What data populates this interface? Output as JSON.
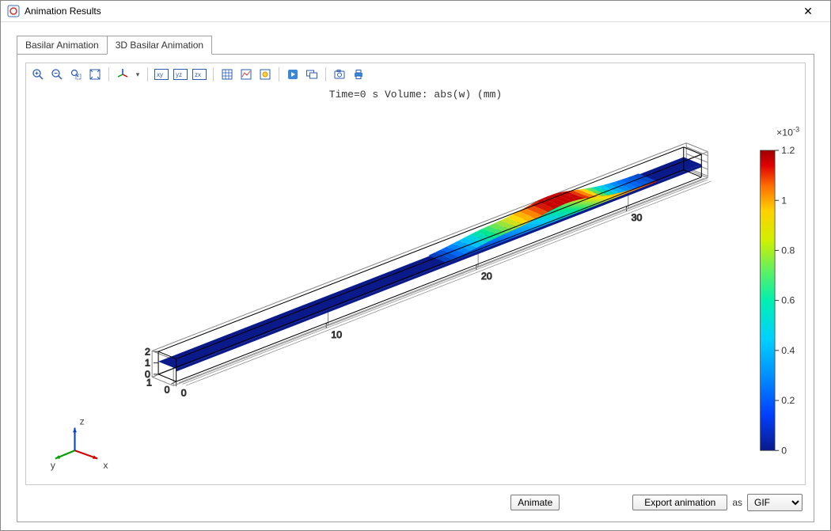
{
  "window": {
    "title": "Animation Results"
  },
  "tabs": [
    {
      "label": "Basilar Animation",
      "active": false
    },
    {
      "label": "3D Basilar Animation",
      "active": true
    }
  ],
  "toolbar_icons": [
    "zoom-in-icon",
    "zoom-out-icon",
    "zoom-box-icon",
    "zoom-extents-icon",
    "sep",
    "axis-3d-icon",
    "dd",
    "sep",
    "view-xy-icon",
    "view-yz-icon",
    "view-zx-icon",
    "sep",
    "grid-icon",
    "plot-settings-icon",
    "scene-light-icon",
    "sep",
    "play-icon",
    "loop-icon",
    "sep",
    "snapshot-icon",
    "print-icon"
  ],
  "plot": {
    "title": "Time=0 s   Volume: abs(w) (mm)",
    "x_ticks": [
      0,
      10,
      20,
      30
    ],
    "y_ticks": [
      0,
      1
    ],
    "z_ticks": [
      0,
      1,
      2
    ],
    "axis_triad": [
      "x",
      "y",
      "z"
    ],
    "triad_colors": {
      "x": "#d40000",
      "y": "#00a000",
      "z": "#0040d4"
    },
    "beam_color": "#0a1a8a",
    "wave_gradient": [
      "#0a1a8a",
      "#0070ff",
      "#00c8ff",
      "#00e890",
      "#ffe000",
      "#ff7000",
      "#c80000"
    ],
    "box_line_color": "#333333",
    "background": "#ffffff"
  },
  "colorbar": {
    "exponent": "×10",
    "exponent_power": "-3",
    "ticks": [
      "1.2",
      "1",
      "0.8",
      "0.6",
      "0.4",
      "0.2",
      "0"
    ],
    "gradient": [
      "#0a1a8a",
      "#0040ff",
      "#0090ff",
      "#00d0ff",
      "#00f0b0",
      "#60f060",
      "#d0f000",
      "#ffd000",
      "#ff7000",
      "#e00000",
      "#a00000"
    ]
  },
  "controls": {
    "animate_label": "Animate",
    "export_label": "Export animation",
    "as_label": "as",
    "format_selected": "GIF"
  }
}
